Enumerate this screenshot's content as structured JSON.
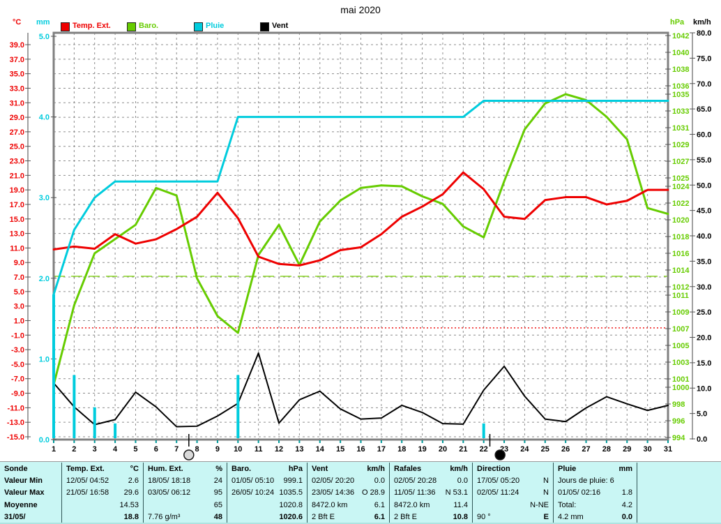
{
  "window": {
    "title": "mai 2020"
  },
  "legend": [
    {
      "label": "Temp. Ext.",
      "color": "#ee0000"
    },
    {
      "label": "Baro.",
      "color": "#66cc00"
    },
    {
      "label": "Pluie",
      "color": "#00ccdd"
    },
    {
      "label": "Vent",
      "color": "#000000"
    }
  ],
  "axes": {
    "temp": {
      "unit": "°C",
      "color": "#ee0000",
      "ticks": [
        39,
        37,
        35,
        33,
        31,
        29,
        27,
        25,
        23,
        21,
        19,
        17,
        15,
        13,
        11,
        9,
        7,
        5,
        3,
        1,
        -1,
        -3,
        -5,
        -7,
        -9,
        -11,
        -13,
        -15
      ]
    },
    "rain": {
      "unit": "mm",
      "color": "#00ccdd",
      "ticks": [
        5,
        4,
        3,
        2,
        1,
        0
      ]
    },
    "baro": {
      "unit": "hPa",
      "color": "#66cc00",
      "ticks": [
        1042,
        1040,
        1038,
        1036,
        1035,
        1033,
        1031,
        1029,
        1027,
        1025,
        1024,
        1022,
        1020,
        1018,
        1016,
        1014,
        1012,
        1011,
        1009,
        1007,
        1005,
        1003,
        1001,
        1000,
        998,
        996,
        994
      ]
    },
    "wind": {
      "unit": "km/h",
      "color": "#000000",
      "ticks": [
        80,
        75,
        70,
        65,
        60,
        55,
        50,
        45,
        40,
        35,
        30,
        25,
        20,
        15,
        10,
        5,
        0
      ]
    }
  },
  "chart_data": {
    "type": "line",
    "title": "mai 2020",
    "x_days": [
      1,
      2,
      3,
      4,
      5,
      6,
      7,
      8,
      9,
      10,
      11,
      12,
      13,
      14,
      15,
      16,
      17,
      18,
      19,
      20,
      21,
      22,
      23,
      24,
      25,
      26,
      27,
      28,
      29,
      30,
      31
    ],
    "axis_ranges": {
      "temp_C": [
        -15,
        39
      ],
      "rain_mm": [
        0,
        5
      ],
      "baro_hPa": [
        994,
        1042
      ],
      "wind_kmh": [
        0,
        80
      ]
    },
    "grid": true,
    "legend_position": "top",
    "series": [
      {
        "name": "Temp. Ext.",
        "axis": "temp",
        "unit": "°C",
        "color": "#ee0000",
        "width": 3,
        "values": [
          10.8,
          11.2,
          10.9,
          12.9,
          11.6,
          12.2,
          13.6,
          15.3,
          18.6,
          15.1,
          9.8,
          8.8,
          8.6,
          9.3,
          10.7,
          11.1,
          12.9,
          15.3,
          16.7,
          18.4,
          21.4,
          19.1,
          15.3,
          15.0,
          17.6,
          18.0,
          18.0,
          17.0,
          17.5,
          19.0,
          19.0
        ]
      },
      {
        "name": "Baro.",
        "axis": "baro",
        "unit": "hPa",
        "color": "#66cc00",
        "width": 3,
        "values": [
          1000.3,
          1009.8,
          1016.0,
          1017.7,
          1019.4,
          1023.8,
          1022.9,
          1013.0,
          1008.5,
          1006.5,
          1015.8,
          1019.4,
          1014.6,
          1019.8,
          1022.3,
          1023.8,
          1024.1,
          1024.0,
          1022.8,
          1021.9,
          1019.2,
          1017.9,
          1024.6,
          1030.8,
          1033.9,
          1035.0,
          1034.3,
          1032.3,
          1029.6,
          1021.4,
          1020.7
        ]
      },
      {
        "name": "Vent",
        "axis": "wind",
        "unit": "km/h",
        "color": "#000000",
        "width": 2,
        "values": [
          11.0,
          6.3,
          2.8,
          3.8,
          9.2,
          6.3,
          2.4,
          2.5,
          4.5,
          7.0,
          16.9,
          3.1,
          7.7,
          9.4,
          5.9,
          3.9,
          4.1,
          6.6,
          5.2,
          3.0,
          2.9,
          9.6,
          14.3,
          8.4,
          3.9,
          3.4,
          6.1,
          8.3,
          6.9,
          5.6,
          6.6
        ]
      },
      {
        "name": "Pluie (cumul)",
        "axis": "rain",
        "unit": "mm",
        "color": "#00ccdd",
        "width": 3,
        "values": [
          1.8,
          2.6,
          3.0,
          3.2,
          3.2,
          3.2,
          3.2,
          3.2,
          3.2,
          4.0,
          4.0,
          4.0,
          4.0,
          4.0,
          4.0,
          4.0,
          4.0,
          4.0,
          4.0,
          4.0,
          4.0,
          4.2,
          4.2,
          4.2,
          4.2,
          4.2,
          4.2,
          4.2,
          4.2,
          4.2,
          4.2
        ]
      }
    ],
    "rain_bars": [
      {
        "day": 1,
        "mm": 1.8
      },
      {
        "day": 2,
        "mm": 0.8
      },
      {
        "day": 3,
        "mm": 0.4
      },
      {
        "day": 4,
        "mm": 0.2
      },
      {
        "day": 10,
        "mm": 0.8
      },
      {
        "day": 22,
        "mm": 0.2
      }
    ],
    "reference_lines": [
      {
        "axis": "temp",
        "value": 0,
        "color": "#ee0000",
        "dash": "2,3",
        "name": "freezing-line"
      },
      {
        "axis": "baro",
        "value": 1013.25,
        "color": "#88d422",
        "dash": "16,9",
        "name": "standard-pressure-line"
      }
    ],
    "moon_markers": [
      {
        "day": 7.6,
        "tick_day": 7.6,
        "phase": "full"
      },
      {
        "day": 22.8,
        "tick_day": 22.3,
        "phase": "new"
      }
    ]
  },
  "table": {
    "row_labels": [
      "Sonde",
      "Valeur Min",
      "Valeur Max",
      "Moyenne",
      "31/05/"
    ],
    "columns": [
      {
        "name": "Temp. Ext.",
        "unit": "°C",
        "rows": [
          [
            "12/05/ 04:52",
            "2.6"
          ],
          [
            "21/05/ 16:58",
            "29.6"
          ],
          [
            "",
            "14.53"
          ],
          [
            "",
            "18.8"
          ]
        ]
      },
      {
        "name": "Hum. Ext.",
        "unit": "%",
        "rows": [
          [
            "18/05/ 18:18",
            "24"
          ],
          [
            "03/05/ 06:12",
            "95"
          ],
          [
            "",
            "65"
          ],
          [
            "7.76 g/m³",
            "48"
          ]
        ]
      },
      {
        "name": "Baro.",
        "unit": "hPa",
        "rows": [
          [
            "01/05/ 05:10",
            "999.1"
          ],
          [
            "26/05/ 10:24",
            "1035.5"
          ],
          [
            "",
            "1020.8"
          ],
          [
            "",
            "1020.6"
          ]
        ]
      },
      {
        "name": "Vent",
        "unit": "km/h",
        "rows": [
          [
            "02/05/ 20:20",
            "0.0"
          ],
          [
            "23/05/ 14:36",
            "O 28.9"
          ],
          [
            "8472.0 km",
            "6.1"
          ],
          [
            "2 Bft E",
            "6.1"
          ]
        ]
      },
      {
        "name": "Rafales",
        "unit": "km/h",
        "rows": [
          [
            "02/05/ 20:28",
            "0.0"
          ],
          [
            "11/05/ 11:36",
            "N 53.1"
          ],
          [
            "8472.0 km",
            "11.4"
          ],
          [
            "2 Bft E",
            "10.8"
          ]
        ]
      },
      {
        "name": "Direction",
        "unit": "",
        "rows": [
          [
            "17/05/ 05:20",
            "N"
          ],
          [
            "02/05/ 11:24",
            "N"
          ],
          [
            "",
            "N-NE"
          ],
          [
            "90 °",
            "E"
          ]
        ]
      },
      {
        "name": "Pluie",
        "unit": "mm",
        "rows": [
          [
            "Jours de pluie: 6",
            ""
          ],
          [
            "01/05/ 02:16",
            "1.8"
          ],
          [
            "Total:",
            "4.2"
          ],
          [
            "4.2 mm",
            "0.0"
          ]
        ]
      }
    ]
  },
  "colors": {
    "grid": "#8c8c8c",
    "plot_border": "#808080",
    "axis_tick": "#555555",
    "day_tick": "#009999",
    "table_bg": "#c9f6f4",
    "table_divider": "#2f5555"
  }
}
